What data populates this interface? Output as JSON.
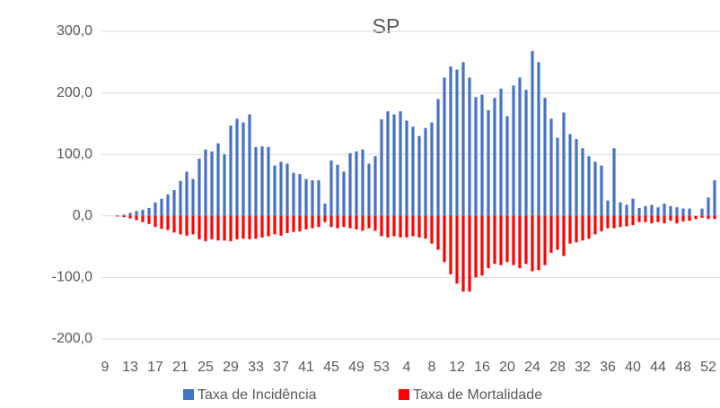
{
  "chart_data": {
    "type": "bar",
    "title": "SP",
    "categories": [
      "9",
      null,
      null,
      null,
      "13",
      null,
      null,
      null,
      "17",
      null,
      null,
      null,
      "21",
      null,
      null,
      null,
      "25",
      null,
      null,
      null,
      "29",
      null,
      null,
      null,
      "33",
      null,
      null,
      null,
      "37",
      null,
      null,
      null,
      "41",
      null,
      null,
      null,
      "45",
      null,
      null,
      null,
      "49",
      null,
      null,
      null,
      "53",
      null,
      null,
      null,
      "4",
      null,
      null,
      null,
      "8",
      null,
      null,
      null,
      "12",
      null,
      null,
      null,
      "16",
      null,
      null,
      null,
      "20",
      null,
      null,
      null,
      "24",
      null,
      null,
      null,
      "28",
      null,
      null,
      null,
      "32",
      null,
      null,
      null,
      "36",
      null,
      null,
      null,
      "40",
      null,
      null,
      null,
      "44",
      null,
      null,
      null,
      "48",
      null,
      null,
      null,
      "52",
      null
    ],
    "series": [
      {
        "name": "Taxa de Incidência",
        "color": "#4472c4",
        "values": [
          0,
          0,
          1,
          2,
          5,
          8,
          10,
          13,
          22,
          28,
          35,
          42,
          57,
          72,
          60,
          93,
          108,
          105,
          118,
          100,
          147,
          158,
          152,
          165,
          112,
          113,
          112,
          82,
          88,
          85,
          70,
          68,
          60,
          58,
          58,
          20,
          90,
          83,
          72,
          102,
          105,
          108,
          85,
          97,
          157,
          170,
          165,
          170,
          155,
          145,
          130,
          143,
          152,
          190,
          225,
          243,
          238,
          250,
          225,
          193,
          197,
          172,
          192,
          207,
          162,
          212,
          225,
          205,
          268,
          250,
          192,
          158,
          127,
          168,
          133,
          125,
          110,
          97,
          88,
          82,
          25,
          110,
          22,
          18,
          28,
          13,
          16,
          18,
          14,
          20,
          16,
          14,
          12,
          12,
          0,
          12,
          30,
          58
        ]
      },
      {
        "name": "Taxa de Mortalidade",
        "color": "#ff0000",
        "values": [
          0,
          0,
          -1,
          -2,
          -4,
          -7,
          -10,
          -13,
          -18,
          -21,
          -23,
          -27,
          -30,
          -32,
          -30,
          -38,
          -41,
          -38,
          -40,
          -40,
          -41,
          -38,
          -37,
          -38,
          -37,
          -35,
          -33,
          -30,
          -32,
          -28,
          -26,
          -25,
          -22,
          -20,
          -18,
          -10,
          -18,
          -20,
          -18,
          -20,
          -22,
          -24,
          -20,
          -24,
          -33,
          -35,
          -33,
          -35,
          -35,
          -33,
          -35,
          -37,
          -45,
          -55,
          -75,
          -95,
          -110,
          -123,
          -123,
          -100,
          -97,
          -85,
          -78,
          -80,
          -75,
          -80,
          -85,
          -78,
          -90,
          -88,
          -80,
          -60,
          -55,
          -65,
          -45,
          -43,
          -40,
          -37,
          -30,
          -25,
          -20,
          -20,
          -18,
          -17,
          -15,
          -10,
          -10,
          -12,
          -10,
          -12,
          -8,
          -12,
          -9,
          -8,
          -5,
          -3,
          -5,
          -5
        ]
      }
    ],
    "ylim": [
      -200,
      300
    ],
    "yticks": [
      {
        "value": -200,
        "label": "-200,0"
      },
      {
        "value": -100,
        "label": "-100,0"
      },
      {
        "value": 0,
        "label": "0,0"
      },
      {
        "value": 100,
        "label": "100,0"
      },
      {
        "value": 200,
        "label": "200,0"
      },
      {
        "value": 300,
        "label": "300,0"
      }
    ],
    "grid": true,
    "legend": "bottom"
  }
}
